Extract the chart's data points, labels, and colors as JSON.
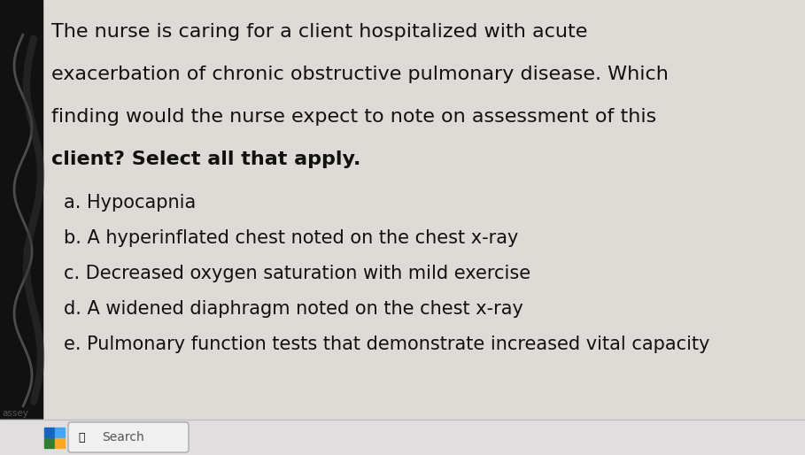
{
  "bg_color": "#dedad5",
  "left_panel_color": "#111111",
  "taskbar_color": "#e0dede",
  "taskbar_border_color": "#c0bebe",
  "question_lines": [
    "The nurse is caring for a client hospitalized with acute",
    "exacerbation of chronic obstructive pulmonary disease. Which",
    "finding would the nurse expect to note on assessment of this",
    "client? Select all that apply."
  ],
  "options": [
    "a. Hypocapnia",
    "b. A hyperinflated chest noted on the chest x-ray",
    "c. Decreased oxygen saturation with mild exercise",
    "d. A widened diaphragm noted on the chest x-ray",
    "e. Pulmonary function tests that demonstrate increased vital capacity"
  ],
  "taskbar_label": "assey",
  "search_text": "Search",
  "question_fontsize": 16.0,
  "option_fontsize": 15.0,
  "question_color": "#111111",
  "option_color": "#111111",
  "win_btn_blue1": "#1565c0",
  "win_btn_blue2": "#42a5f5",
  "win_btn_green": "#2e7d32",
  "win_btn_yellow": "#f9a825"
}
